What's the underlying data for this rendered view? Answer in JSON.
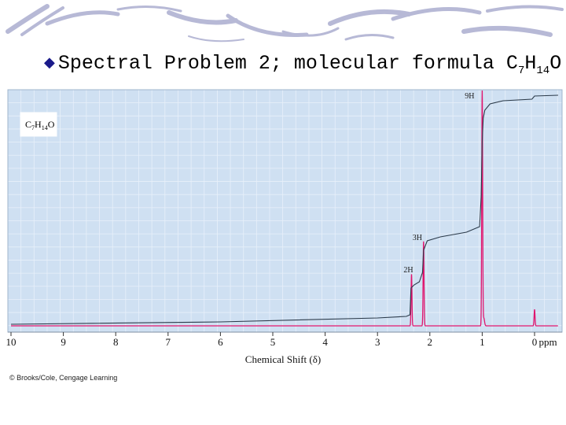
{
  "slide": {
    "title_prefix": "Spectral Problem 2; molecular formula C",
    "title_sub1": "7",
    "title_mid": "H",
    "title_sub2": "14",
    "title_end": "O."
  },
  "colors": {
    "plot_bg": "#cfe0f2",
    "grid": "#e8f0fa",
    "spectrum": "#e0156e",
    "integral": "#2b3a4a",
    "brush_strokes": "#b7b9d6"
  },
  "chart_data": {
    "type": "line",
    "title": "",
    "xlabel": "Chemical Shift (δ)",
    "xunit": "ppm",
    "xlim": [
      10,
      -0.45
    ],
    "x_reversed": true,
    "xticks": [
      10,
      9,
      8,
      7,
      6,
      5,
      4,
      3,
      2,
      1,
      0
    ],
    "grid": true,
    "formula_box": {
      "main": "C",
      "sub1": "7",
      "mid": "H",
      "sub2": "14",
      "end": "O"
    },
    "copyright": "© Brooks/Cole, Cengage Learning",
    "peaks": [
      {
        "shift": 2.35,
        "height": 0.22
      },
      {
        "shift": 2.12,
        "height": 0.36
      },
      {
        "shift": 1.0,
        "height": 1.0
      },
      {
        "shift": 0.0,
        "height": 0.07
      }
    ],
    "integration_labels": [
      {
        "label": "2H",
        "shift": 2.35
      },
      {
        "label": "3H",
        "shift": 2.12
      },
      {
        "label": "9H",
        "shift": 1.0
      }
    ]
  }
}
